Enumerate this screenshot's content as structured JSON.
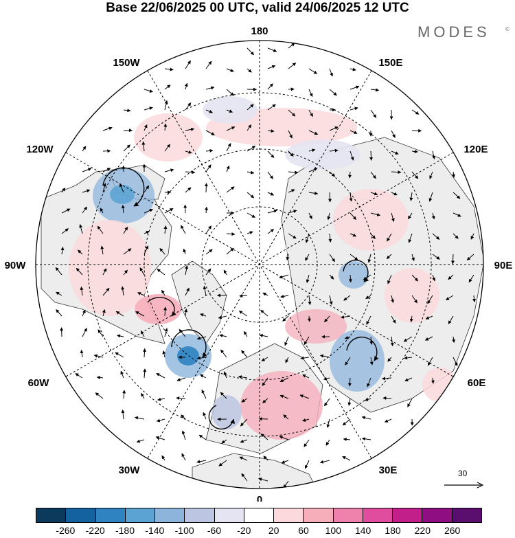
{
  "header": {
    "title": "Base 22/06/2025 00 UTC, valid 24/06/2025 12 UTC",
    "brand": "MODES",
    "brand_mark": "©"
  },
  "map": {
    "projection": "polar-stereographic-north",
    "longitude_labels": {
      "top": "180",
      "bottom": "0",
      "left": "90W",
      "right": "90E",
      "upper_left_1": "150W",
      "upper_left_2": "120W",
      "lower_left_1": "60W",
      "lower_left_2": "30W",
      "upper_right_1": "150E",
      "upper_right_2": "120E",
      "lower_right_1": "60E",
      "lower_right_2": "30E"
    },
    "background_color": "#ededed",
    "ocean_color": "#ffffff",
    "reference_vector_label": "30",
    "anomaly_features": [
      {
        "name": "anomaly-low-north-america",
        "polarity": "negative",
        "strength": "moderate"
      },
      {
        "name": "anomaly-low-north-atlantic",
        "polarity": "negative",
        "strength": "strong"
      },
      {
        "name": "anomaly-high-canada",
        "polarity": "positive",
        "strength": "moderate"
      },
      {
        "name": "anomaly-high-europe",
        "polarity": "positive",
        "strength": "moderate"
      },
      {
        "name": "anomaly-high-siberia",
        "polarity": "positive",
        "strength": "weak"
      },
      {
        "name": "anomaly-low-west-asia",
        "polarity": "negative",
        "strength": "moderate"
      },
      {
        "name": "anomaly-high-north-pacific",
        "polarity": "positive",
        "strength": "weak"
      }
    ]
  },
  "colorbar": {
    "colors": [
      "#0b3a5c",
      "#1462a0",
      "#2e83c0",
      "#5aa3d2",
      "#8db5dc",
      "#bcc6e2",
      "#e4e4f2",
      "#ffffff",
      "#fbd9dc",
      "#f6aebb",
      "#ef82ad",
      "#e04d9e",
      "#c21f8a",
      "#8f0f82",
      "#5a0e6e"
    ],
    "ticks": [
      "-260",
      "-220",
      "-180",
      "-140",
      "-100",
      "-60",
      "-20",
      "20",
      "60",
      "100",
      "140",
      "180",
      "220",
      "260"
    ]
  }
}
